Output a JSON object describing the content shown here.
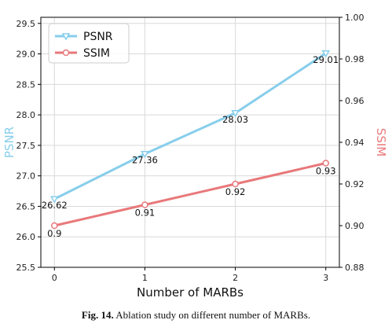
{
  "caption": {
    "label": "Fig. 14.",
    "text": "Ablation study on different number of MARBs."
  },
  "colors": {
    "psnr": "#87ceeb",
    "ssim": "#e8787a",
    "grid": "#d9d9d9",
    "axis": "#000000"
  },
  "chart_data": {
    "type": "line",
    "xlabel": "Number of MARBs",
    "ylabel_left": "PSNR",
    "ylabel_right": "SSIM",
    "x": [
      0,
      1,
      2,
      3
    ],
    "x_ticks": [
      "0",
      "1",
      "2",
      "3"
    ],
    "xlim": [
      -0.15,
      3.15
    ],
    "ylim_left": [
      25.5,
      29.6
    ],
    "ylim_right": [
      0.88,
      1.0
    ],
    "left_ticks": [
      "25.5",
      "26.0",
      "26.5",
      "27.0",
      "27.5",
      "28.0",
      "28.5",
      "29.0",
      "29.5"
    ],
    "right_ticks": [
      "0.88",
      "0.90",
      "0.92",
      "0.94",
      "0.96",
      "0.98",
      "1.00"
    ],
    "grid": true,
    "legend_position": "top-left",
    "series": [
      {
        "name": "PSNR",
        "axis": "left",
        "marker": "triangle-down",
        "values": [
          26.62,
          27.36,
          28.03,
          29.01
        ],
        "labels": [
          "26.62",
          "27.36",
          "28.03",
          "29.01"
        ]
      },
      {
        "name": "SSIM",
        "axis": "right",
        "marker": "circle",
        "values": [
          0.9,
          0.91,
          0.92,
          0.93
        ],
        "labels": [
          "0.9",
          "0.91",
          "0.92",
          "0.93"
        ]
      }
    ]
  }
}
